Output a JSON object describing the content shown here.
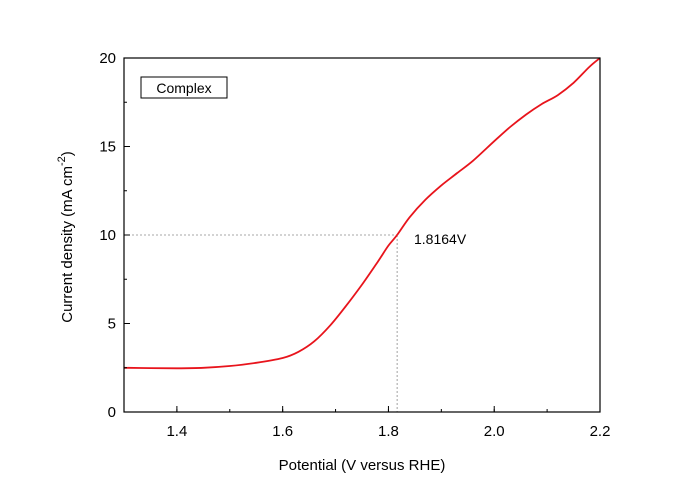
{
  "chart_data": {
    "type": "line",
    "xlabel": "Potential (V versus RHE)",
    "ylabel": "Current density (mA cm",
    "ylabel_sup": "-2",
    "ylabel_close": ")",
    "xlim": [
      1.3,
      2.2
    ],
    "ylim": [
      0,
      20
    ],
    "x_ticks": [
      "1.4",
      "1.6",
      "1.8",
      "2.0",
      "2.2"
    ],
    "y_ticks": [
      "0",
      "5",
      "10",
      "15",
      "20"
    ],
    "grid": false,
    "legend_position": "top-left",
    "series": [
      {
        "name": "Complex",
        "color": "#e8141c",
        "x": [
          1.3,
          1.35,
          1.4,
          1.45,
          1.5,
          1.55,
          1.6,
          1.63,
          1.66,
          1.69,
          1.72,
          1.75,
          1.78,
          1.8,
          1.8164,
          1.84,
          1.87,
          1.9,
          1.93,
          1.96,
          2.0,
          2.03,
          2.06,
          2.09,
          2.12,
          2.15,
          2.18,
          2.2
        ],
        "y": [
          2.5,
          2.48,
          2.47,
          2.5,
          2.6,
          2.78,
          3.05,
          3.4,
          4.0,
          4.9,
          6.0,
          7.2,
          8.5,
          9.4,
          10.0,
          11.0,
          12.0,
          12.8,
          13.5,
          14.2,
          15.3,
          16.1,
          16.8,
          17.4,
          17.9,
          18.6,
          19.5,
          20.0
        ]
      }
    ],
    "annotations": [
      {
        "label": "1.8164V",
        "x": 1.8164,
        "y": 10
      }
    ],
    "reference_lines": {
      "color": "#8a8a8a",
      "x": 1.8164,
      "y": 10
    }
  }
}
